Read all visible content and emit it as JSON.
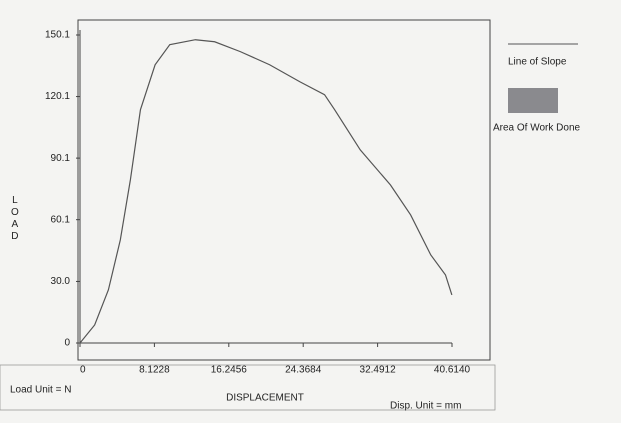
{
  "chart_data": {
    "type": "line",
    "x_label": "DISPLACEMENT",
    "y_label": "LOAD",
    "load_unit": "Load Unit = N",
    "disp_unit": "Disp. Unit = mm",
    "legend": [
      "Line of Slope",
      "Area Of Work Done"
    ],
    "x": [
      0,
      1.6,
      3.1,
      4.4,
      5.5,
      6.6,
      8.2,
      9.8,
      12.6,
      14.7,
      17.5,
      20.7,
      24.0,
      26.7,
      27.8,
      30.6,
      33.9,
      36.1,
      38.3,
      39.9,
      40.6
    ],
    "series": [
      {
        "color": "#555555",
        "values": [
          0,
          8.8,
          25.9,
          50.2,
          79.5,
          113.7,
          135.6,
          145.4,
          147.8,
          146.8,
          142,
          135.6,
          127.3,
          121,
          113.7,
          94.1,
          77,
          62.4,
          42.9,
          33.2,
          23.4
        ]
      }
    ],
    "xlim": [
      0,
      40.614
    ],
    "ylim": [
      0,
      150.1
    ],
    "xticks": [
      0,
      8.1228,
      16.2456,
      24.3684,
      32.4912,
      {
        "value": 40.614,
        "label": "40.6140"
      }
    ],
    "yticks": [
      0,
      {
        "value": 30,
        "label": "30.0"
      },
      60.1,
      90.1,
      120.1,
      150.1
    ]
  }
}
